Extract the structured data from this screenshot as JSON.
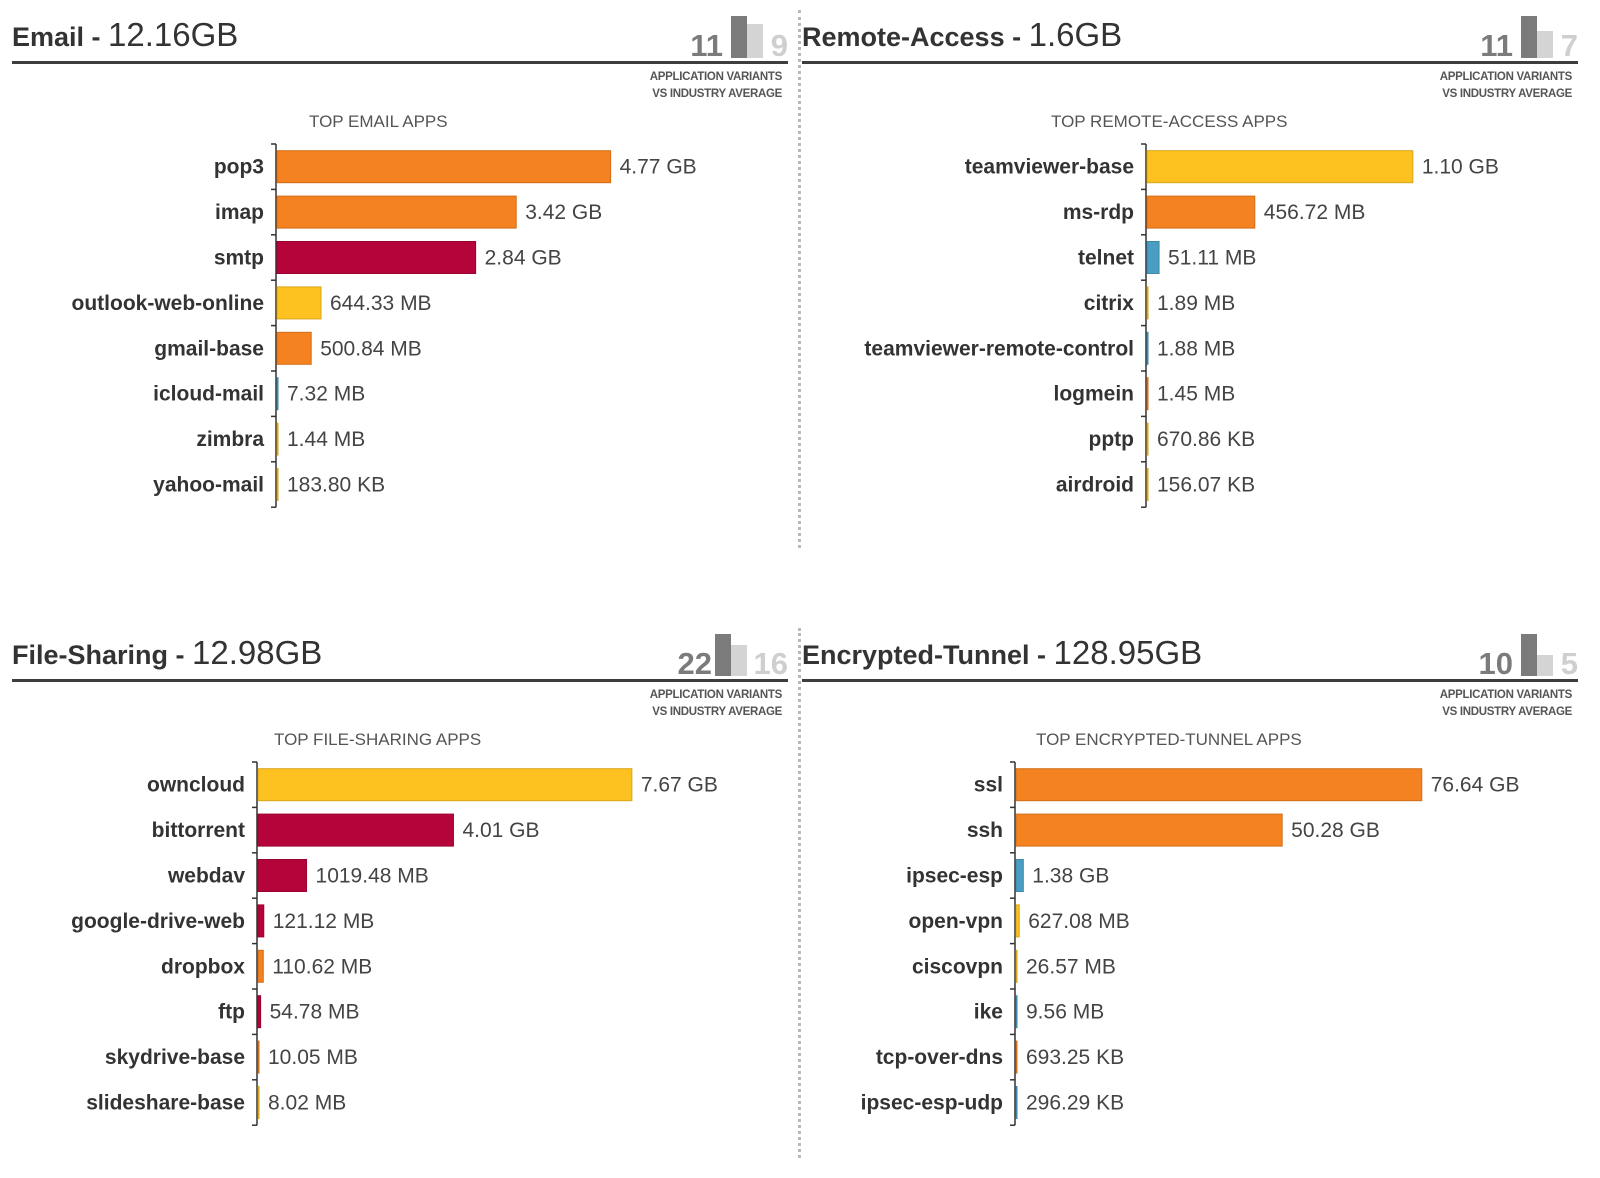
{
  "variants_label_line1": "APPLICATION VARIANTS",
  "variants_label_line2": "VS INDUSTRY AVERAGE",
  "colors": {
    "orange": "#f58220",
    "red": "#b5043a",
    "yellow": "#fdc21f",
    "blue": "#4a9ec4"
  },
  "panels": [
    {
      "category": "Email",
      "separator": " - ",
      "total": "12.16GB",
      "app_variants": "11",
      "industry_average": "9",
      "subtitle": "TOP EMAIL APPS",
      "chart_data": {
        "type": "bar",
        "orientation": "horizontal",
        "unit": "MB",
        "categories": [
          "pop3",
          "imap",
          "smtp",
          "outlook-web-online",
          "gmail-base",
          "icloud-mail",
          "zimbra",
          "yahoo-mail"
        ],
        "values": [
          4884.48,
          3502.08,
          2908.16,
          644.33,
          500.84,
          7.32,
          1.44,
          0.18
        ],
        "labels": [
          "4.77 GB",
          "3.42 GB",
          "2.84 GB",
          "644.33 MB",
          "500.84 MB",
          "7.32 MB",
          "1.44 MB",
          "183.80 KB"
        ],
        "colors": [
          "#f58220",
          "#f58220",
          "#b5043a",
          "#fdc21f",
          "#f58220",
          "#4a9ec4",
          "#fdc21f",
          "#fdc21f"
        ]
      }
    },
    {
      "category": "Remote-Access",
      "separator": " - ",
      "total": "1.6GB",
      "app_variants": "11",
      "industry_average": "7",
      "subtitle": "TOP REMOTE-ACCESS APPS",
      "chart_data": {
        "type": "bar",
        "orientation": "horizontal",
        "unit": "MB",
        "categories": [
          "teamviewer-base",
          "ms-rdp",
          "telnet",
          "citrix",
          "teamviewer-remote-control",
          "logmein",
          "pptp",
          "airdroid"
        ],
        "values": [
          1126.4,
          456.72,
          51.11,
          1.89,
          1.88,
          1.45,
          0.66,
          0.15
        ],
        "labels": [
          "1.10 GB",
          "456.72 MB",
          "51.11 MB",
          "1.89 MB",
          "1.88 MB",
          "1.45 MB",
          "670.86 KB",
          "156.07 KB"
        ],
        "colors": [
          "#fdc21f",
          "#f58220",
          "#4a9ec4",
          "#fdc21f",
          "#4a9ec4",
          "#f58220",
          "#fdc21f",
          "#fdc21f"
        ]
      }
    },
    {
      "category": "File-Sharing",
      "separator": " - ",
      "total": "12.98GB",
      "app_variants": "22",
      "industry_average": "16",
      "subtitle": "TOP FILE-SHARING APPS",
      "chart_data": {
        "type": "bar",
        "orientation": "horizontal",
        "unit": "MB",
        "categories": [
          "owncloud",
          "bittorrent",
          "webdav",
          "google-drive-web",
          "dropbox",
          "ftp",
          "skydrive-base",
          "slideshare-base"
        ],
        "values": [
          7854.08,
          4106.24,
          1019.48,
          121.12,
          110.62,
          54.78,
          10.05,
          8.02
        ],
        "labels": [
          "7.67 GB",
          "4.01 GB",
          "1019.48 MB",
          "121.12 MB",
          "110.62 MB",
          "54.78 MB",
          "10.05 MB",
          "8.02 MB"
        ],
        "colors": [
          "#fdc21f",
          "#b5043a",
          "#b5043a",
          "#b5043a",
          "#f58220",
          "#b5043a",
          "#f58220",
          "#fdc21f"
        ]
      }
    },
    {
      "category": "Encrypted-Tunnel",
      "separator": " - ",
      "total": "128.95GB",
      "app_variants": "10",
      "industry_average": "5",
      "subtitle": "TOP ENCRYPTED-TUNNEL APPS",
      "chart_data": {
        "type": "bar",
        "orientation": "horizontal",
        "unit": "MB",
        "categories": [
          "ssl",
          "ssh",
          "ipsec-esp",
          "open-vpn",
          "ciscovpn",
          "ike",
          "tcp-over-dns",
          "ipsec-esp-udp"
        ],
        "values": [
          78479.36,
          51486.72,
          1413.12,
          627.08,
          26.57,
          9.56,
          0.68,
          0.29
        ],
        "labels": [
          "76.64 GB",
          "50.28 GB",
          "1.38 GB",
          "627.08 MB",
          "26.57 MB",
          "9.56 MB",
          "693.25 KB",
          "296.29 KB"
        ],
        "colors": [
          "#f58220",
          "#f58220",
          "#4a9ec4",
          "#fdc21f",
          "#fdc21f",
          "#4a9ec4",
          "#f58220",
          "#4a9ec4"
        ]
      }
    }
  ]
}
